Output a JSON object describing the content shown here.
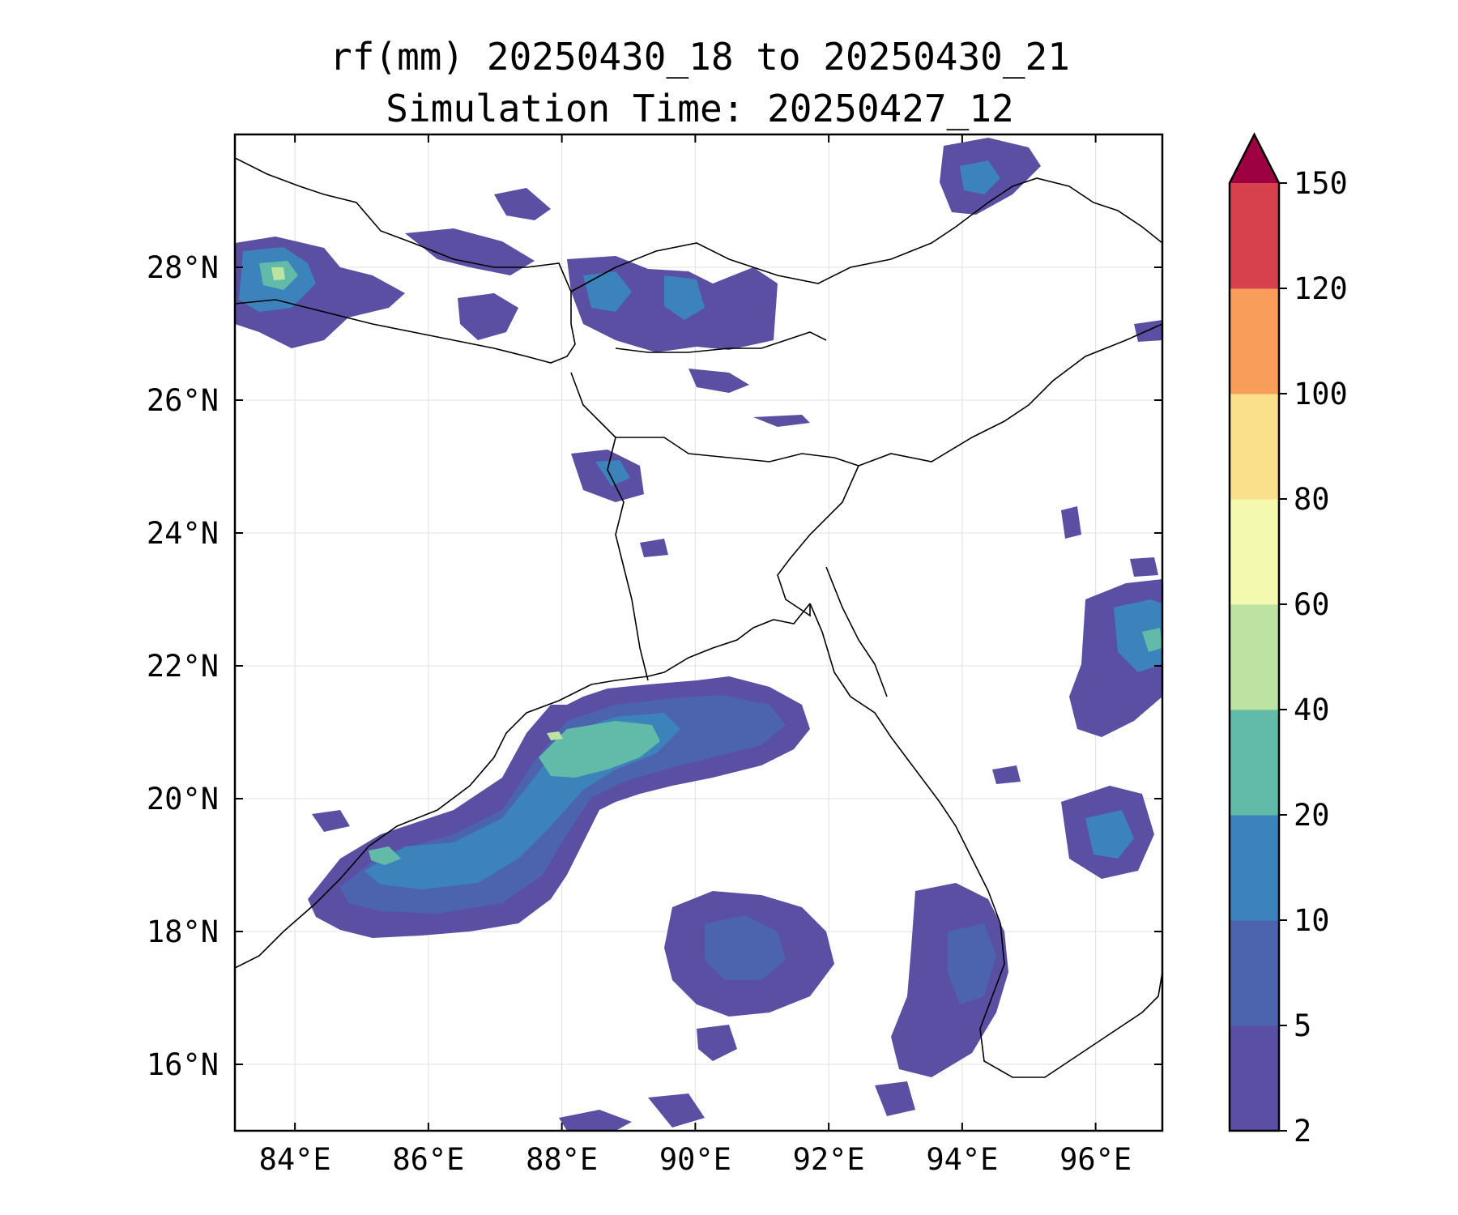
{
  "title": {
    "line1": "rf(mm) 20250430_18 to 20250430_21",
    "line2": "Simulation Time: 20250427_12"
  },
  "map": {
    "lon_range": [
      83.1,
      97.0
    ],
    "lat_range": [
      15.0,
      30.0
    ],
    "lon_ticks": [
      84,
      86,
      88,
      90,
      92,
      94,
      96
    ],
    "lat_ticks": [
      16,
      18,
      20,
      22,
      24,
      26,
      28
    ],
    "lon_tick_labels": [
      "84°E",
      "86°E",
      "88°E",
      "90°E",
      "92°E",
      "94°E",
      "96°E"
    ],
    "lat_tick_labels": [
      "16°N",
      "18°N",
      "20°N",
      "22°N",
      "24°N",
      "26°N",
      "28°N"
    ],
    "grid": true
  },
  "colorbar": {
    "levels": [
      2,
      5,
      10,
      20,
      40,
      60,
      80,
      100,
      120,
      150
    ],
    "labels": [
      "2",
      "5",
      "10",
      "20",
      "40",
      "60",
      "80",
      "100",
      "120",
      "150"
    ],
    "colors": [
      "#5a4fa2",
      "#4c64ad",
      "#3c82bb",
      "#62bba8",
      "#bde3a3",
      "#f3f9ae",
      "#fbe08c",
      "#f99d5a",
      "#d7414e"
    ],
    "extend_color": "#9e0142",
    "extend": "max"
  }
}
